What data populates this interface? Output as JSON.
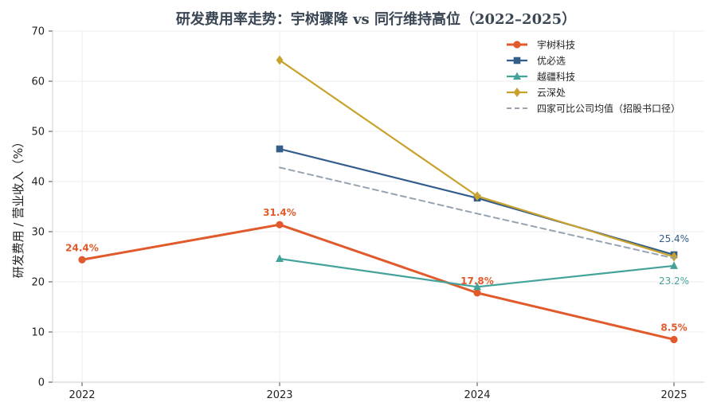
{
  "chart_data": {
    "type": "line",
    "title": "研发费用率走势：宇树骤降 vs 同行维持高位（2022–2025）",
    "xlabel": "",
    "ylabel": "研发费用 / 营业收入（%）",
    "x": [
      "2022",
      "2023",
      "2024",
      "2025"
    ],
    "ylim": [
      0,
      70
    ],
    "yticks": [
      "0",
      "10",
      "20",
      "30",
      "40",
      "50",
      "60",
      "70"
    ],
    "grid": true,
    "legend_position": "top-right",
    "series": [
      {
        "name": "宇树科技",
        "color": "#e05a2b",
        "marker": "circle",
        "dash": false,
        "width": 3,
        "values": [
          24.4,
          31.4,
          17.8,
          8.5
        ],
        "labels": [
          "24.4%",
          "31.4%",
          "17.8%",
          "8.5%"
        ]
      },
      {
        "name": "优必选",
        "color": "#335e8a",
        "marker": "square",
        "dash": false,
        "width": 2.2,
        "values": [
          null,
          46.5,
          36.7,
          25.4
        ],
        "labels": [
          null,
          null,
          null,
          "25.4%"
        ]
      },
      {
        "name": "越疆科技",
        "color": "#43a39a",
        "marker": "triangle",
        "dash": false,
        "width": 2.2,
        "values": [
          null,
          24.6,
          19.0,
          23.2
        ],
        "labels": [
          null,
          null,
          null,
          "23.2%"
        ]
      },
      {
        "name": "云深处",
        "color": "#c9a22b",
        "marker": "diamond",
        "dash": false,
        "width": 2.2,
        "values": [
          null,
          64.2,
          37.1,
          25.0
        ],
        "labels": [
          null,
          null,
          null,
          null
        ]
      },
      {
        "name": "四家可比公司均值（招股书口径）",
        "color": "#98a3b0",
        "marker": "none",
        "dash": true,
        "width": 2,
        "values": [
          null,
          42.8,
          33.6,
          24.7
        ],
        "labels": [
          null,
          null,
          null,
          null
        ]
      }
    ]
  }
}
